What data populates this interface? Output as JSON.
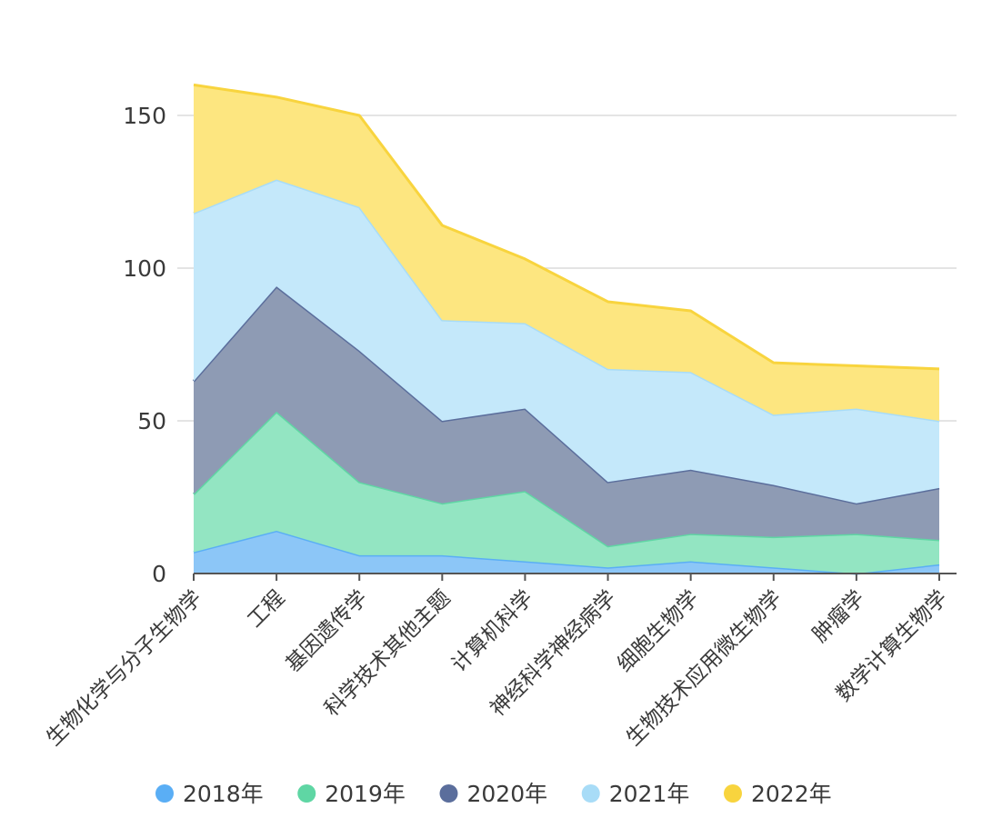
{
  "chart_data": {
    "type": "area",
    "stacked": true,
    "title": "",
    "xlabel": "",
    "ylabel": "",
    "ylim": [
      0,
      165
    ],
    "yticks": [
      0,
      50,
      100,
      150
    ],
    "grid": true,
    "legend_position": "bottom",
    "categories": [
      "生物化学与分子生物学",
      "工程",
      "基因遗传学",
      "科学技术其他主题",
      "计算机科学",
      "神经科学神经病学",
      "细胞生物学",
      "生物技术应用微生物学",
      "肿瘤学",
      "数学计算生物学"
    ],
    "series": [
      {
        "name": "2018年",
        "color": "#5aaef5",
        "fill": "#8cc6f7",
        "values": [
          7,
          14,
          6,
          6,
          4,
          2,
          4,
          2,
          0,
          3
        ]
      },
      {
        "name": "2019年",
        "color": "#5fd6a4",
        "fill": "#93e5c2",
        "values": [
          19,
          39,
          24,
          17,
          23,
          7,
          9,
          10,
          13,
          8
        ]
      },
      {
        "name": "2020年",
        "color": "#5b6e9c",
        "fill": "#8e9bb4",
        "values": [
          37,
          41,
          43,
          27,
          27,
          21,
          21,
          17,
          10,
          17
        ]
      },
      {
        "name": "2021年",
        "color": "#a8dcf7",
        "fill": "#c4e8fa",
        "values": [
          55,
          35,
          47,
          33,
          28,
          37,
          32,
          23,
          31,
          22
        ]
      },
      {
        "name": "2022年",
        "color": "#f8d43e",
        "fill": "#fde680",
        "values": [
          42,
          27,
          30,
          31,
          21,
          22,
          20,
          17,
          14,
          17
        ]
      }
    ]
  }
}
